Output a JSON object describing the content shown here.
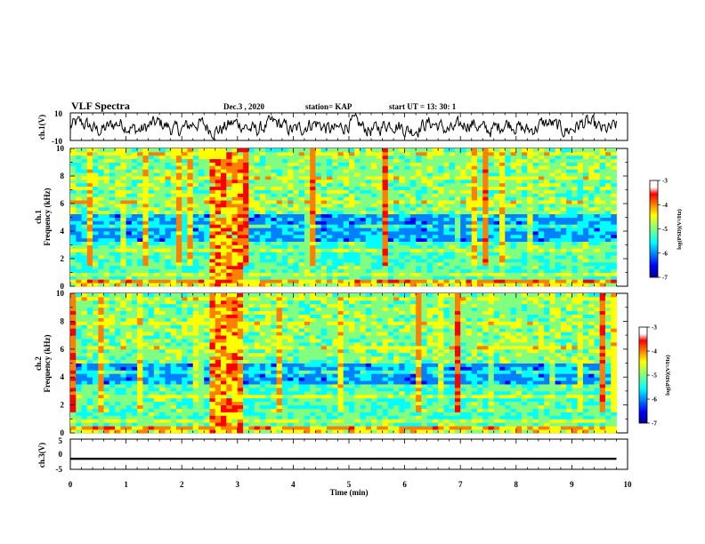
{
  "header": {
    "title": "VLF Spectra",
    "date": "Dec.3 , 2020",
    "station": "station= KAP",
    "start": "start UT = 13: 30: 1"
  },
  "chart_data": [
    {
      "type": "line",
      "name": "waveform-ch1",
      "ylabel": "ch.1(V)",
      "ylim": [
        -10,
        10
      ],
      "ytick_labels": [
        "10",
        "-10"
      ],
      "xlim": [
        0,
        10
      ],
      "description_of_signal": "noisy oscillation, values mostly between -5 and 5",
      "grid": false
    },
    {
      "type": "heatmap",
      "name": "spectrogram-ch1",
      "ylabel": "ch.1\nFrequency (kHz)",
      "ylabel_lines": [
        "ch.1",
        "Frequency (kHz)"
      ],
      "ylim": [
        0,
        10
      ],
      "ytick_labels": [
        "0",
        "2",
        "4",
        "6",
        "8",
        "10"
      ],
      "xlim": [
        0,
        9.8
      ],
      "colorbar": {
        "label": "log(PSD)(V²/Hz)",
        "range": [
          -7,
          -3
        ],
        "tick_labels": [
          "-3",
          "-4",
          "-5",
          "-6",
          "-7"
        ]
      },
      "features": {
        "high_band_kHz": [
          5.2,
          10
        ],
        "low_band_kHz": [
          0.5,
          4.3
        ],
        "quiet_band_kHz": [
          3.2,
          5.2
        ],
        "burst_min": [
          2.55,
          3.15
        ]
      }
    },
    {
      "type": "heatmap",
      "name": "spectrogram-ch2",
      "ylabel": "ch.2\nFrequency (kHz)",
      "ylabel_lines": [
        "ch.2",
        "Frequency (kHz)"
      ],
      "ylim": [
        0,
        10
      ],
      "ytick_labels": [
        "0",
        "2",
        "4",
        "6",
        "8",
        "10"
      ],
      "xlim": [
        0,
        9.8
      ],
      "colorbar": {
        "label": "log(PSD)(V²/Hz)",
        "range": [
          -7,
          -3
        ],
        "tick_labels": [
          "-3",
          "-4",
          "-5",
          "-6",
          "-7"
        ]
      },
      "features": {
        "high_band_kHz": [
          5.0,
          10
        ],
        "low_band_kHz": [
          0.3,
          3.5
        ],
        "quiet_band_kHz": [
          3.5,
          5.0
        ],
        "burst_min": [
          2.55,
          3.15
        ]
      }
    },
    {
      "type": "line",
      "name": "waveform-ch3",
      "ylabel": "ch.3(V)",
      "ylim": [
        -5,
        5
      ],
      "ytick_labels": [
        "5",
        "0",
        "-5"
      ],
      "xlim": [
        0,
        10
      ],
      "description_of_signal": "thin band near -1.5 V",
      "band_center_V": -1.5,
      "grid": false
    }
  ],
  "xaxis": {
    "label": "Time (min)",
    "ticks": [
      0,
      1,
      2,
      3,
      4,
      5,
      6,
      7,
      8,
      9,
      10
    ],
    "tick_labels": [
      "0",
      "1",
      "2",
      "3",
      "4",
      "5",
      "6",
      "7",
      "8",
      "9",
      "10"
    ]
  },
  "colors": {
    "jet": [
      "#00008f",
      "#0000ff",
      "#0080ff",
      "#00ffff",
      "#80ff80",
      "#ffff00",
      "#ff8000",
      "#ff0000",
      "#800000"
    ],
    "ink": "#000000",
    "background": "#ffffff"
  }
}
